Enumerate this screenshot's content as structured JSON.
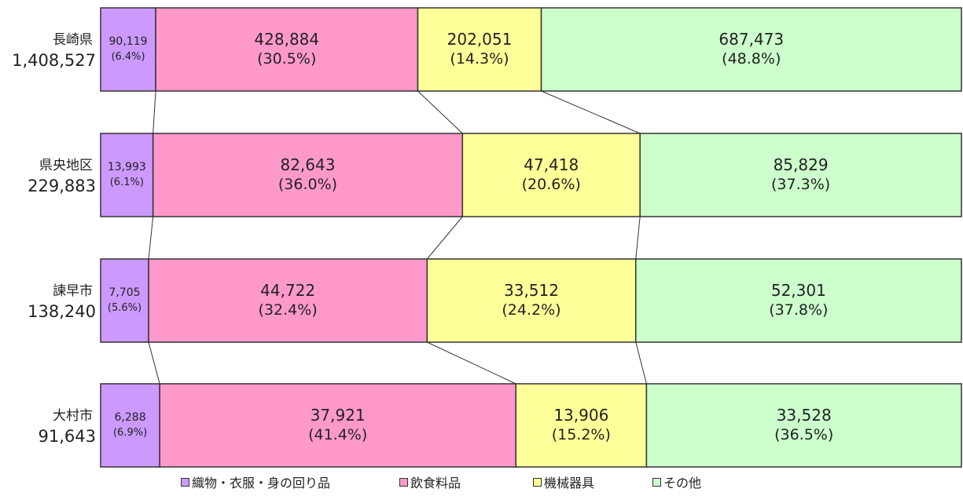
{
  "chart_data": {
    "type": "bar",
    "orientation": "horizontal",
    "stacked": "percent",
    "grid": false,
    "legend_position": "bottom",
    "categories": [
      {
        "name": "長崎県",
        "total": "1,408,527"
      },
      {
        "name": "県央地区",
        "total": "229,883"
      },
      {
        "name": "諫早市",
        "total": "138,240"
      },
      {
        "name": "大村市",
        "total": "91,643"
      }
    ],
    "series": [
      {
        "name": "織物・衣服・身の回り品",
        "color": "#cc99ff",
        "values": [
          90119,
          13993,
          7705,
          6288
        ],
        "value_labels": [
          "90,119",
          "13,993",
          "7,705",
          "6,288"
        ],
        "percent_labels": [
          "(6.4%)",
          "(6.1%)",
          "(5.6%)",
          "(6.9%)"
        ]
      },
      {
        "name": "飲食料品",
        "color": "#ff99cc",
        "values": [
          428884,
          82643,
          44722,
          37921
        ],
        "value_labels": [
          "428,884",
          "82,643",
          "44,722",
          "37,921"
        ],
        "percent_labels": [
          "(30.5%)",
          "(36.0%)",
          "(32.4%)",
          "(41.4%)"
        ]
      },
      {
        "name": "機械器具",
        "color": "#ffff99",
        "values": [
          202051,
          47418,
          33512,
          13906
        ],
        "value_labels": [
          "202,051",
          "47,418",
          "33,512",
          "13,906"
        ],
        "percent_labels": [
          "(14.3%)",
          "(20.6%)",
          "(24.2%)",
          "(15.2%)"
        ]
      },
      {
        "name": "その他",
        "color": "#ccffcc",
        "values": [
          687473,
          85829,
          52301,
          33528
        ],
        "value_labels": [
          "687,473",
          "85,829",
          "52,301",
          "33,528"
        ],
        "percent_labels": [
          "(48.8%)",
          "(37.3%)",
          "(37.8%)",
          "(36.5%)"
        ]
      }
    ]
  }
}
